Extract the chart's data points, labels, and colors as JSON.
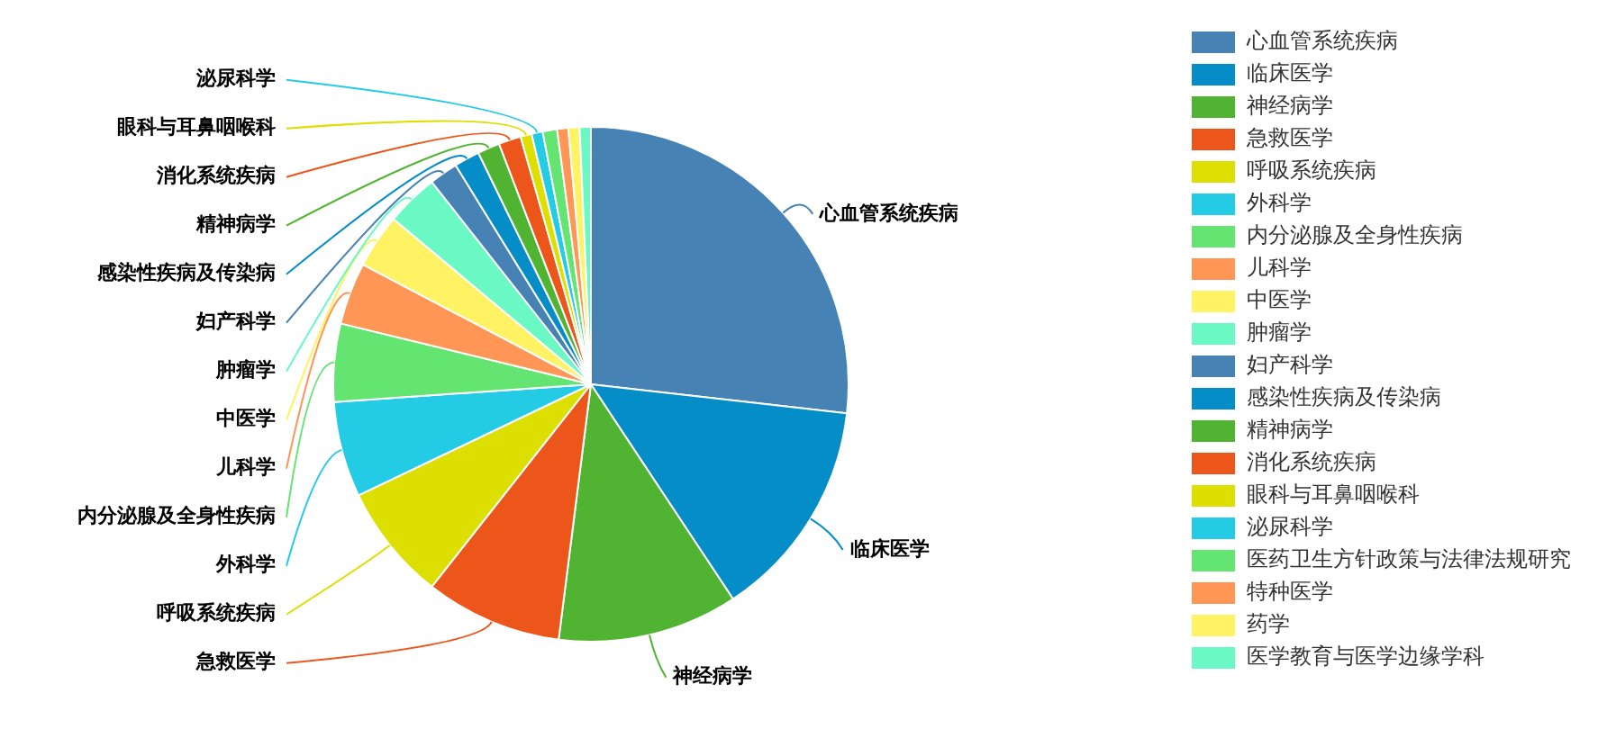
{
  "chart_data": {
    "type": "pie",
    "categories": [
      "心血管系统疾病",
      "临床医学",
      "神经病学",
      "急救医学",
      "呼吸系统疾病",
      "外科学",
      "内分泌腺及全身性疾病",
      "儿科学",
      "中医学",
      "肿瘤学",
      "妇产科学",
      "感染性疾病及传染病",
      "精神病学",
      "消化系统疾病",
      "眼科与耳鼻咽喉科",
      "泌尿科学",
      "医药卫生方针政策与法律法规研究",
      "特种医学",
      "药学",
      "医学教育与医学边缘学科"
    ],
    "values": [
      26.8,
      13.9,
      11.3,
      8.6,
      7.3,
      6.0,
      4.9,
      3.9,
      3.4,
      3.3,
      1.8,
      1.6,
      1.4,
      1.4,
      0.7,
      0.7,
      0.9,
      0.7,
      0.7,
      0.7
    ],
    "colors": [
      "#4682b4",
      "#058dc7",
      "#50b432",
      "#ed561b",
      "#dddf00",
      "#24cbe5",
      "#64e572",
      "#ff9655",
      "#fff263",
      "#6af9c4",
      "#4682b4",
      "#058dc7",
      "#50b432",
      "#ed561b",
      "#dddf00",
      "#24cbe5",
      "#64e572",
      "#ff9655",
      "#fff263",
      "#6af9c4"
    ],
    "legend": "top right"
  }
}
